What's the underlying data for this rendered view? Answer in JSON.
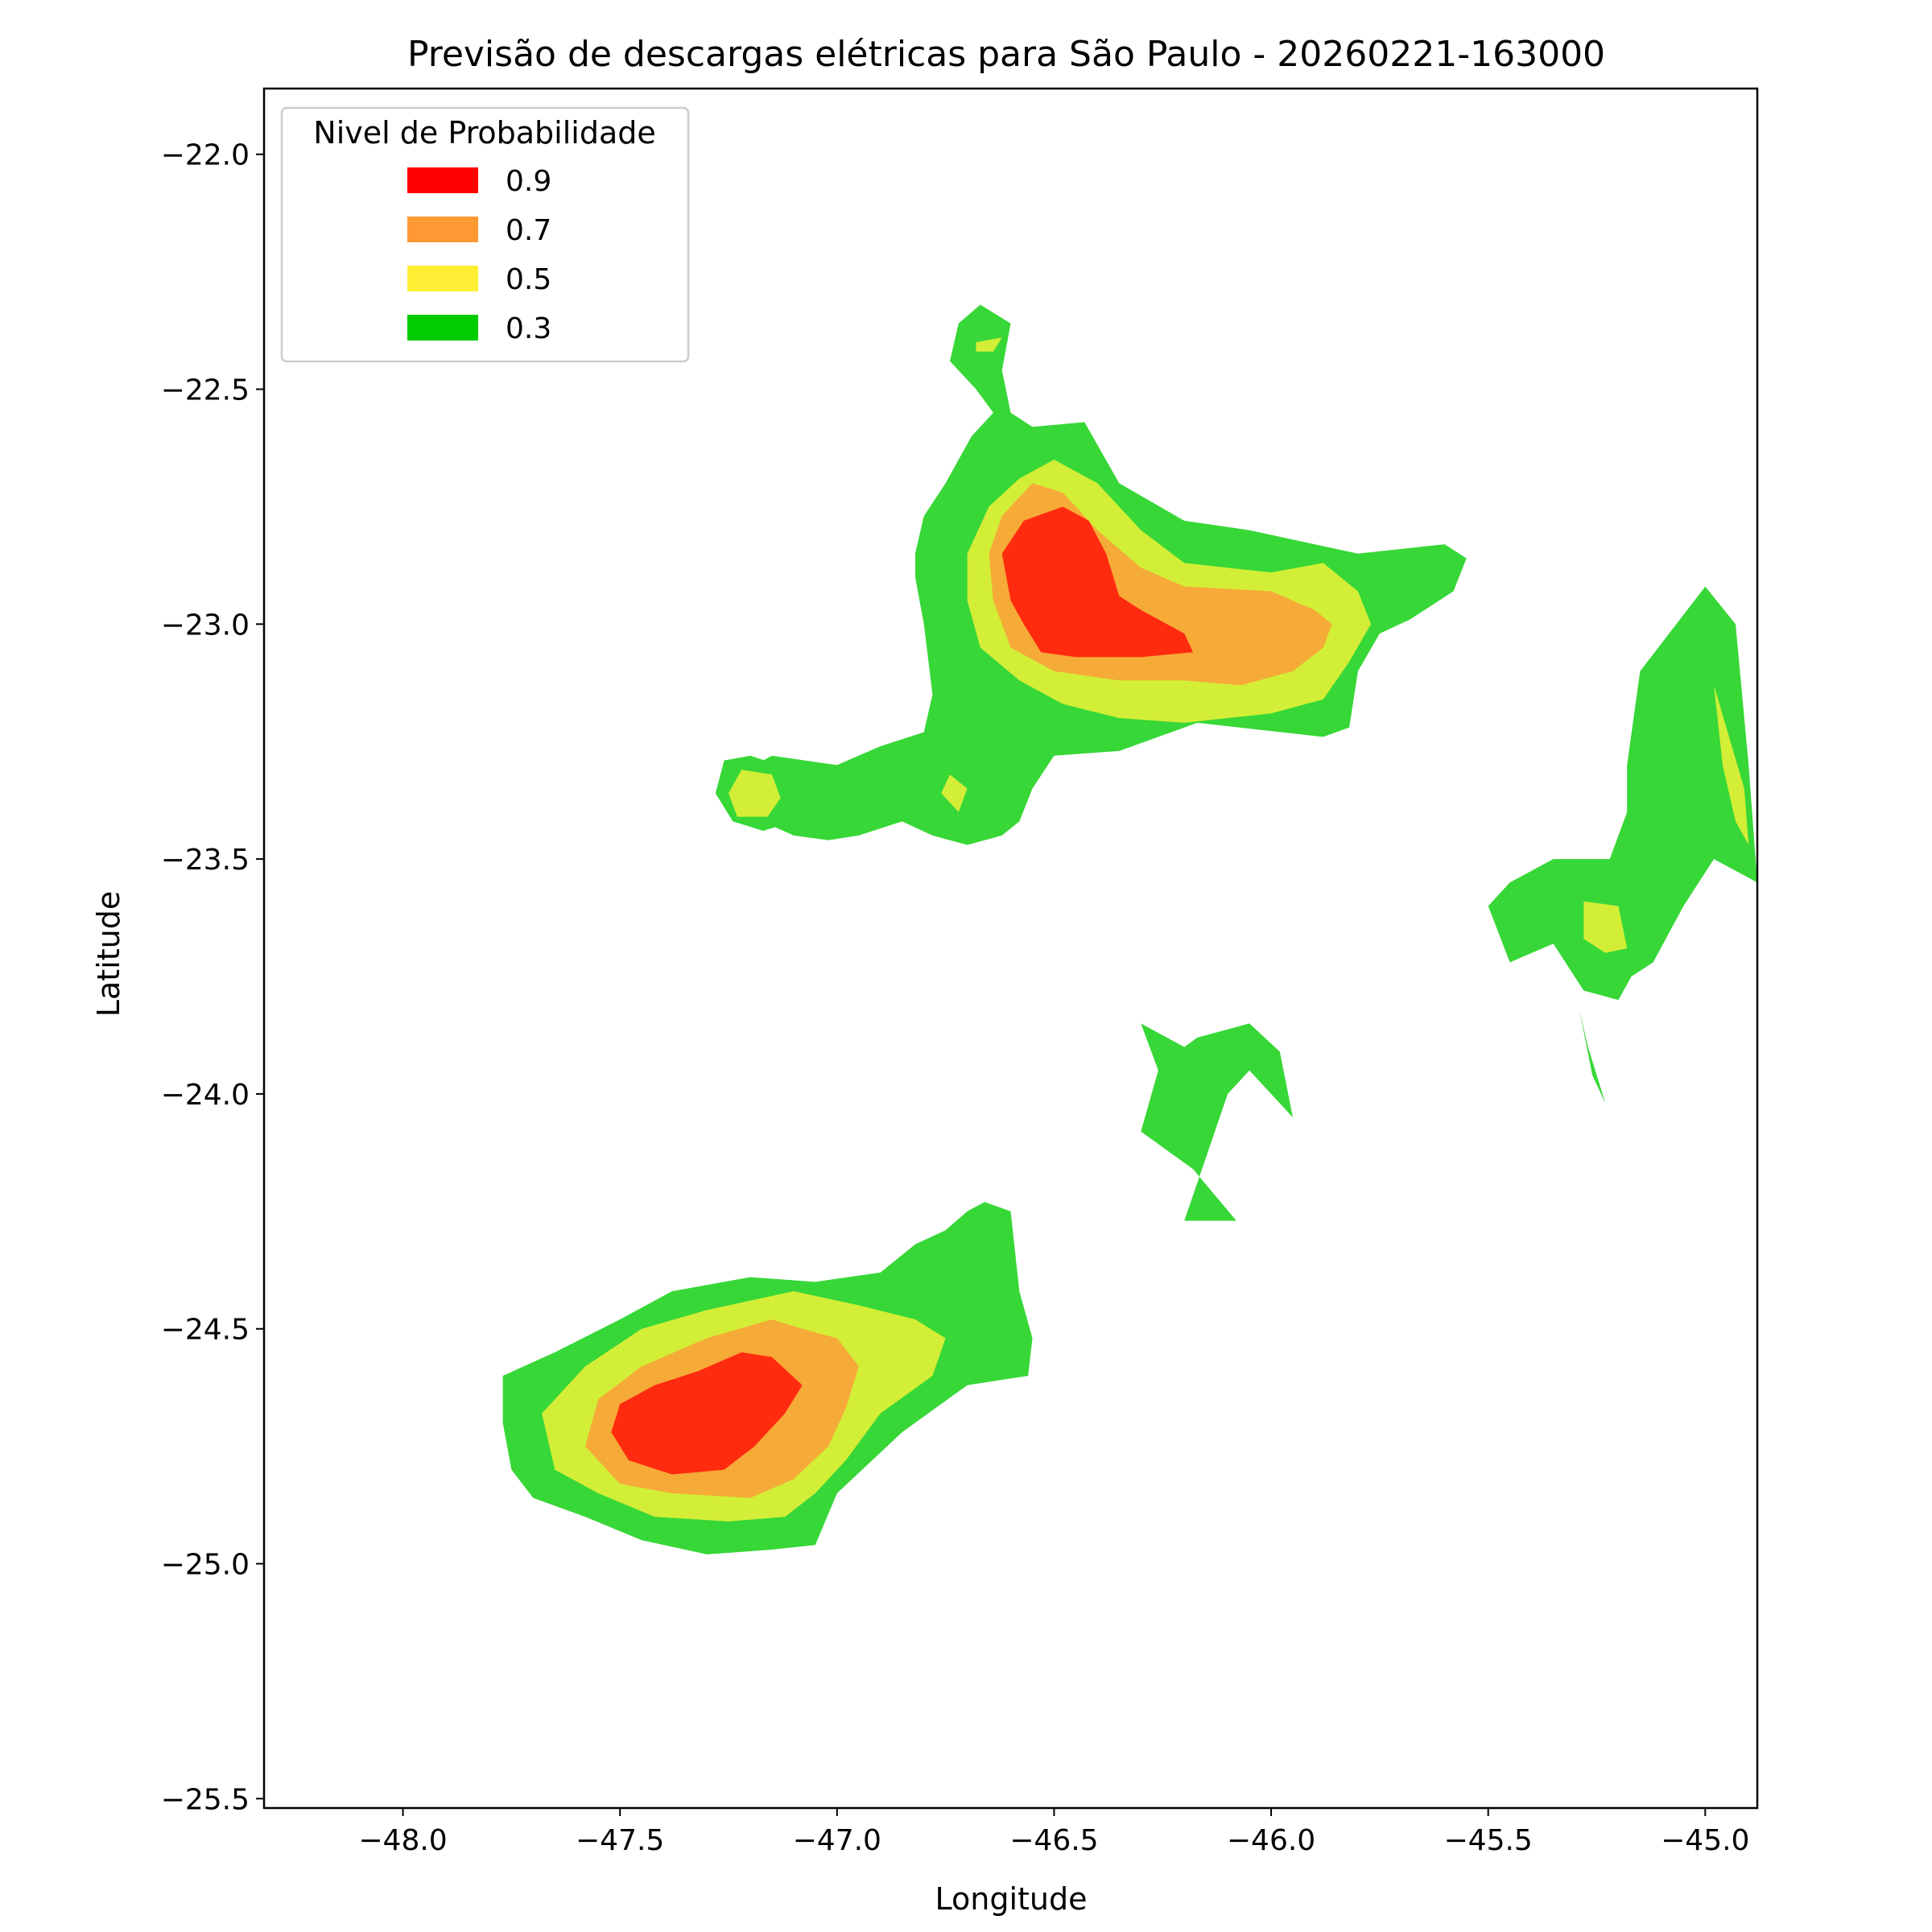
{
  "chart_data": {
    "type": "heatmap",
    "title": "Previsão de descargas elétricas para São Paulo - 20260221-163000",
    "xlabel": "Longitude",
    "ylabel": "Latitude",
    "xlim": [
      -48.32,
      -44.88
    ],
    "ylim": [
      -25.52,
      -21.86
    ],
    "x_ticks": [
      -48.0,
      -47.5,
      -47.0,
      -46.5,
      -46.0,
      -45.5,
      -45.0
    ],
    "x_tick_labels": [
      "−48.0",
      "−47.5",
      "−47.0",
      "−46.5",
      "−46.0",
      "−45.5",
      "−45.0"
    ],
    "y_ticks": [
      -22.0,
      -22.5,
      -23.0,
      -23.5,
      -24.0,
      -24.5,
      -25.0,
      -25.5
    ],
    "y_tick_labels": [
      "−22.0",
      "−22.5",
      "−23.0",
      "−23.5",
      "−24.0",
      "−24.5",
      "−25.0",
      "−25.5"
    ],
    "grid": false,
    "legend": {
      "title": "Nivel de Probabilidade",
      "placement": "top-left",
      "entries": [
        {
          "label": "0.9",
          "color": "#ff0000"
        },
        {
          "label": "0.7",
          "color": "#ff9933"
        },
        {
          "label": "0.5",
          "color": "#ffee33"
        },
        {
          "label": "0.3",
          "color": "#00cc00"
        }
      ]
    },
    "fill_colors": {
      "0.3": "#37d737",
      "0.5": "#d3ee37",
      "0.7": "#f6aa37",
      "0.9": "#ff2b0f"
    },
    "regions": [
      {
        "level": "0.3",
        "points": [
          [
            -46.72,
            -22.36
          ],
          [
            -46.67,
            -22.32
          ],
          [
            -46.6,
            -22.36
          ],
          [
            -46.62,
            -22.46
          ],
          [
            -46.6,
            -22.55
          ],
          [
            -46.55,
            -22.58
          ],
          [
            -46.43,
            -22.57
          ],
          [
            -46.35,
            -22.7
          ],
          [
            -46.2,
            -22.78
          ],
          [
            -46.05,
            -22.8
          ],
          [
            -45.8,
            -22.85
          ],
          [
            -45.6,
            -22.83
          ],
          [
            -45.55,
            -22.86
          ],
          [
            -45.58,
            -22.93
          ],
          [
            -45.68,
            -22.99
          ],
          [
            -45.75,
            -23.02
          ],
          [
            -45.8,
            -23.1
          ],
          [
            -45.82,
            -23.22
          ],
          [
            -45.88,
            -23.24
          ],
          [
            -46.17,
            -23.21
          ],
          [
            -46.35,
            -23.27
          ],
          [
            -46.5,
            -23.28
          ],
          [
            -46.55,
            -23.35
          ],
          [
            -46.58,
            -23.42
          ],
          [
            -46.62,
            -23.45
          ],
          [
            -46.7,
            -23.47
          ],
          [
            -46.78,
            -23.45
          ],
          [
            -46.85,
            -23.42
          ],
          [
            -46.95,
            -23.45
          ],
          [
            -47.02,
            -23.46
          ],
          [
            -47.1,
            -23.45
          ],
          [
            -47.22,
            -23.4
          ],
          [
            -47.23,
            -23.32
          ],
          [
            -47.15,
            -23.28
          ],
          [
            -47.0,
            -23.3
          ],
          [
            -46.9,
            -23.26
          ],
          [
            -46.8,
            -23.23
          ],
          [
            -46.78,
            -23.15
          ],
          [
            -46.8,
            -23.0
          ],
          [
            -46.82,
            -22.9
          ],
          [
            -46.82,
            -22.85
          ],
          [
            -46.8,
            -22.77
          ],
          [
            -46.75,
            -22.7
          ],
          [
            -46.72,
            -22.65
          ],
          [
            -46.69,
            -22.6
          ],
          [
            -46.64,
            -22.55
          ],
          [
            -46.68,
            -22.5
          ],
          [
            -46.74,
            -22.44
          ]
        ]
      },
      {
        "level": "0.5",
        "points": [
          [
            -46.68,
            -22.4
          ],
          [
            -46.62,
            -22.39
          ],
          [
            -46.64,
            -22.42
          ],
          [
            -46.68,
            -22.42
          ]
        ]
      },
      {
        "level": "0.5",
        "points": [
          [
            -46.5,
            -22.65
          ],
          [
            -46.4,
            -22.7
          ],
          [
            -46.3,
            -22.8
          ],
          [
            -46.2,
            -22.87
          ],
          [
            -46.0,
            -22.89
          ],
          [
            -45.88,
            -22.87
          ],
          [
            -45.8,
            -22.93
          ],
          [
            -45.77,
            -23.0
          ],
          [
            -45.82,
            -23.08
          ],
          [
            -45.88,
            -23.16
          ],
          [
            -46.0,
            -23.19
          ],
          [
            -46.2,
            -23.21
          ],
          [
            -46.35,
            -23.2
          ],
          [
            -46.48,
            -23.17
          ],
          [
            -46.58,
            -23.12
          ],
          [
            -46.67,
            -23.05
          ],
          [
            -46.7,
            -22.95
          ],
          [
            -46.7,
            -22.85
          ],
          [
            -46.65,
            -22.75
          ],
          [
            -46.58,
            -22.69
          ]
        ]
      },
      {
        "level": "0.7",
        "points": [
          [
            -46.55,
            -22.7
          ],
          [
            -46.48,
            -22.72
          ],
          [
            -46.4,
            -22.8
          ],
          [
            -46.3,
            -22.88
          ],
          [
            -46.2,
            -22.92
          ],
          [
            -46.0,
            -22.93
          ],
          [
            -45.9,
            -22.97
          ],
          [
            -45.86,
            -23.0
          ],
          [
            -45.88,
            -23.05
          ],
          [
            -45.95,
            -23.1
          ],
          [
            -46.07,
            -23.13
          ],
          [
            -46.2,
            -23.12
          ],
          [
            -46.35,
            -23.12
          ],
          [
            -46.5,
            -23.1
          ],
          [
            -46.6,
            -23.05
          ],
          [
            -46.64,
            -22.95
          ],
          [
            -46.65,
            -22.85
          ],
          [
            -46.62,
            -22.77
          ]
        ]
      },
      {
        "level": "0.9",
        "points": [
          [
            -46.48,
            -22.75
          ],
          [
            -46.42,
            -22.78
          ],
          [
            -46.38,
            -22.85
          ],
          [
            -46.35,
            -22.94
          ],
          [
            -46.3,
            -22.97
          ],
          [
            -46.2,
            -23.02
          ],
          [
            -46.18,
            -23.06
          ],
          [
            -46.3,
            -23.07
          ],
          [
            -46.45,
            -23.07
          ],
          [
            -46.53,
            -23.06
          ],
          [
            -46.57,
            -23.0
          ],
          [
            -46.6,
            -22.95
          ],
          [
            -46.62,
            -22.85
          ],
          [
            -46.57,
            -22.78
          ]
        ]
      },
      {
        "level": "0.3",
        "points": [
          [
            -47.2,
            -23.28
          ],
          [
            -47.1,
            -23.31
          ],
          [
            -47.07,
            -23.36
          ],
          [
            -47.1,
            -23.42
          ],
          [
            -47.17,
            -23.44
          ],
          [
            -47.24,
            -23.42
          ],
          [
            -47.28,
            -23.36
          ],
          [
            -47.26,
            -23.29
          ]
        ]
      },
      {
        "level": "0.5",
        "points": [
          [
            -47.22,
            -23.31
          ],
          [
            -47.15,
            -23.32
          ],
          [
            -47.13,
            -23.37
          ],
          [
            -47.16,
            -23.41
          ],
          [
            -47.23,
            -23.41
          ],
          [
            -47.25,
            -23.36
          ]
        ]
      },
      {
        "level": "0.5",
        "points": [
          [
            -46.74,
            -23.32
          ],
          [
            -46.7,
            -23.35
          ],
          [
            -46.72,
            -23.4
          ],
          [
            -46.76,
            -23.36
          ]
        ]
      },
      {
        "level": "0.3",
        "points": [
          [
            -45.0,
            -22.92
          ],
          [
            -44.93,
            -23.0
          ],
          [
            -44.9,
            -23.3
          ],
          [
            -44.88,
            -23.55
          ],
          [
            -44.98,
            -23.5
          ],
          [
            -45.05,
            -23.6
          ],
          [
            -45.12,
            -23.72
          ],
          [
            -45.17,
            -23.75
          ],
          [
            -45.2,
            -23.8
          ],
          [
            -45.28,
            -23.78
          ],
          [
            -45.35,
            -23.68
          ],
          [
            -45.45,
            -23.72
          ],
          [
            -45.5,
            -23.6
          ],
          [
            -45.45,
            -23.55
          ],
          [
            -45.35,
            -23.5
          ],
          [
            -45.22,
            -23.5
          ],
          [
            -45.18,
            -23.4
          ],
          [
            -45.18,
            -23.3
          ],
          [
            -45.15,
            -23.1
          ]
        ]
      },
      {
        "level": "0.5",
        "points": [
          [
            -44.98,
            -23.13
          ],
          [
            -44.91,
            -23.35
          ],
          [
            -44.9,
            -23.47
          ],
          [
            -44.93,
            -23.42
          ],
          [
            -44.96,
            -23.3
          ]
        ]
      },
      {
        "level": "0.5",
        "points": [
          [
            -45.28,
            -23.59
          ],
          [
            -45.2,
            -23.6
          ],
          [
            -45.18,
            -23.69
          ],
          [
            -45.23,
            -23.7
          ],
          [
            -45.28,
            -23.67
          ]
        ]
      },
      {
        "level": "0.3",
        "points": [
          [
            -45.29,
            -23.82
          ],
          [
            -45.26,
            -23.96
          ],
          [
            -45.23,
            -24.02
          ],
          [
            -45.27,
            -23.9
          ]
        ]
      },
      {
        "level": "0.3",
        "points": [
          [
            -46.3,
            -23.85
          ],
          [
            -46.26,
            -23.95
          ],
          [
            -46.3,
            -24.08
          ],
          [
            -46.18,
            -24.16
          ],
          [
            -46.08,
            -24.27
          ],
          [
            -46.2,
            -24.27
          ],
          [
            -46.1,
            -24.0
          ],
          [
            -46.05,
            -23.95
          ],
          [
            -45.95,
            -24.05
          ],
          [
            -45.98,
            -23.91
          ],
          [
            -46.05,
            -23.85
          ],
          [
            -46.17,
            -23.88
          ],
          [
            -46.2,
            -23.9
          ]
        ]
      },
      {
        "level": "0.3",
        "points": [
          [
            -46.66,
            -24.23
          ],
          [
            -46.6,
            -24.25
          ],
          [
            -46.58,
            -24.42
          ],
          [
            -46.55,
            -24.52
          ],
          [
            -46.56,
            -24.6
          ],
          [
            -46.7,
            -24.62
          ],
          [
            -46.85,
            -24.72
          ],
          [
            -47.0,
            -24.85
          ],
          [
            -47.05,
            -24.96
          ],
          [
            -47.15,
            -24.97
          ],
          [
            -47.3,
            -24.98
          ],
          [
            -47.45,
            -24.95
          ],
          [
            -47.58,
            -24.9
          ],
          [
            -47.7,
            -24.86
          ],
          [
            -47.75,
            -24.8
          ],
          [
            -47.77,
            -24.7
          ],
          [
            -47.77,
            -24.6
          ],
          [
            -47.65,
            -24.55
          ],
          [
            -47.5,
            -24.48
          ],
          [
            -47.38,
            -24.42
          ],
          [
            -47.2,
            -24.39
          ],
          [
            -47.05,
            -24.4
          ],
          [
            -46.9,
            -24.38
          ],
          [
            -46.82,
            -24.32
          ],
          [
            -46.75,
            -24.29
          ],
          [
            -46.7,
            -24.25
          ]
        ]
      },
      {
        "level": "0.5",
        "points": [
          [
            -47.1,
            -24.42
          ],
          [
            -47.3,
            -24.46
          ],
          [
            -47.45,
            -24.5
          ],
          [
            -47.58,
            -24.58
          ],
          [
            -47.68,
            -24.68
          ],
          [
            -47.65,
            -24.8
          ],
          [
            -47.55,
            -24.85
          ],
          [
            -47.42,
            -24.9
          ],
          [
            -47.25,
            -24.91
          ],
          [
            -47.12,
            -24.9
          ],
          [
            -47.05,
            -24.85
          ],
          [
            -46.98,
            -24.78
          ],
          [
            -46.9,
            -24.68
          ],
          [
            -46.78,
            -24.6
          ],
          [
            -46.75,
            -24.52
          ],
          [
            -46.82,
            -24.48
          ],
          [
            -46.95,
            -24.45
          ]
        ]
      },
      {
        "level": "0.7",
        "points": [
          [
            -47.15,
            -24.48
          ],
          [
            -47.3,
            -24.52
          ],
          [
            -47.45,
            -24.58
          ],
          [
            -47.55,
            -24.65
          ],
          [
            -47.58,
            -24.75
          ],
          [
            -47.5,
            -24.83
          ],
          [
            -47.38,
            -24.85
          ],
          [
            -47.2,
            -24.86
          ],
          [
            -47.1,
            -24.82
          ],
          [
            -47.02,
            -24.75
          ],
          [
            -46.98,
            -24.67
          ],
          [
            -46.95,
            -24.58
          ],
          [
            -47.0,
            -24.52
          ],
          [
            -47.08,
            -24.5
          ]
        ]
      },
      {
        "level": "0.9",
        "points": [
          [
            -47.22,
            -24.55
          ],
          [
            -47.32,
            -24.59
          ],
          [
            -47.42,
            -24.62
          ],
          [
            -47.5,
            -24.66
          ],
          [
            -47.52,
            -24.72
          ],
          [
            -47.48,
            -24.78
          ],
          [
            -47.38,
            -24.81
          ],
          [
            -47.26,
            -24.8
          ],
          [
            -47.19,
            -24.75
          ],
          [
            -47.12,
            -24.68
          ],
          [
            -47.08,
            -24.62
          ],
          [
            -47.15,
            -24.56
          ]
        ]
      }
    ]
  }
}
